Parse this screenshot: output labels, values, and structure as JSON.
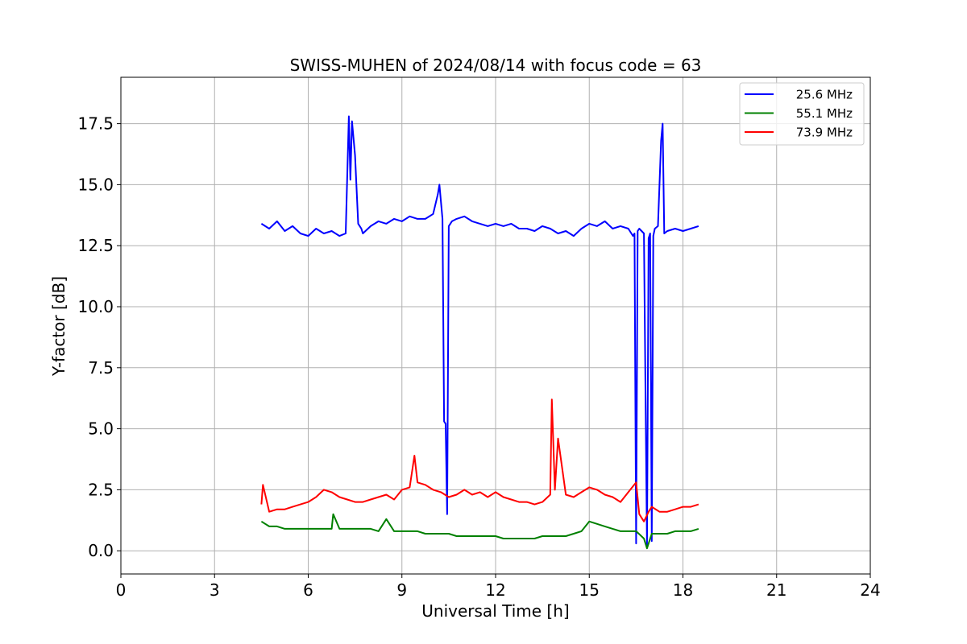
{
  "chart_data": {
    "type": "line",
    "title": "SWISS-MUHEN of 2024/08/14 with focus code = 63",
    "xlabel": "Universal Time [h]",
    "ylabel": "Y-factor [dB]",
    "xlim": [
      0,
      24
    ],
    "ylim": [
      -0.95,
      19.4
    ],
    "xticks": [
      0,
      3,
      6,
      9,
      12,
      15,
      18,
      21,
      24
    ],
    "xtick_labels": [
      "0",
      "3",
      "6",
      "9",
      "12",
      "15",
      "18",
      "21",
      "24"
    ],
    "yticks": [
      0.0,
      2.5,
      5.0,
      7.5,
      10.0,
      12.5,
      15.0,
      17.5
    ],
    "ytick_labels": [
      "0.0",
      "2.5",
      "5.0",
      "7.5",
      "10.0",
      "12.5",
      "15.0",
      "17.5"
    ],
    "grid": true,
    "legend_position": "top-right",
    "series": [
      {
        "name": "25.6 MHz",
        "color": "#0000ff",
        "x": [
          4.5,
          4.75,
          5.0,
          5.25,
          5.5,
          5.75,
          6.0,
          6.25,
          6.5,
          6.75,
          7.0,
          7.2,
          7.3,
          7.35,
          7.4,
          7.5,
          7.6,
          7.7,
          7.75,
          8.0,
          8.25,
          8.5,
          8.75,
          9.0,
          9.25,
          9.5,
          9.75,
          10.0,
          10.15,
          10.2,
          10.3,
          10.35,
          10.4,
          10.45,
          10.5,
          10.6,
          10.75,
          11.0,
          11.25,
          11.5,
          11.75,
          12.0,
          12.25,
          12.5,
          12.75,
          13.0,
          13.25,
          13.5,
          13.75,
          14.0,
          14.25,
          14.5,
          14.75,
          15.0,
          15.25,
          15.5,
          15.75,
          16.0,
          16.25,
          16.4,
          16.45,
          16.5,
          16.55,
          16.6,
          16.75,
          16.85,
          16.9,
          16.95,
          17.0,
          17.05,
          17.1,
          17.2,
          17.3,
          17.35,
          17.4,
          17.5,
          17.75,
          18.0,
          18.25,
          18.5
        ],
        "y": [
          13.4,
          13.2,
          13.5,
          13.1,
          13.3,
          13.0,
          12.9,
          13.2,
          13.0,
          13.1,
          12.9,
          13.0,
          17.8,
          15.2,
          17.6,
          16.2,
          13.4,
          13.2,
          13.0,
          13.3,
          13.5,
          13.4,
          13.6,
          13.5,
          13.7,
          13.6,
          13.6,
          13.8,
          14.6,
          15.0,
          13.6,
          5.3,
          5.2,
          1.5,
          13.3,
          13.5,
          13.6,
          13.7,
          13.5,
          13.4,
          13.3,
          13.4,
          13.3,
          13.4,
          13.2,
          13.2,
          13.1,
          13.3,
          13.2,
          13.0,
          13.1,
          12.9,
          13.2,
          13.4,
          13.3,
          13.5,
          13.2,
          13.3,
          13.2,
          12.9,
          13.0,
          0.3,
          13.1,
          13.2,
          13.0,
          0.2,
          12.8,
          13.0,
          0.4,
          12.9,
          13.2,
          13.3,
          16.8,
          17.5,
          13.0,
          13.1,
          13.2,
          13.1,
          13.2,
          13.3
        ]
      },
      {
        "name": "55.1 MHz",
        "color": "#008000",
        "x": [
          4.5,
          4.75,
          5.0,
          5.25,
          5.5,
          5.75,
          6.0,
          6.25,
          6.5,
          6.75,
          6.8,
          7.0,
          7.25,
          7.5,
          7.75,
          8.0,
          8.25,
          8.5,
          8.75,
          9.0,
          9.25,
          9.5,
          9.75,
          10.0,
          10.25,
          10.5,
          10.75,
          11.0,
          11.25,
          11.5,
          11.75,
          12.0,
          12.25,
          12.5,
          12.75,
          13.0,
          13.25,
          13.5,
          13.75,
          14.0,
          14.25,
          14.5,
          14.75,
          15.0,
          15.25,
          15.5,
          15.75,
          16.0,
          16.25,
          16.5,
          16.75,
          16.85,
          17.0,
          17.25,
          17.5,
          17.75,
          18.0,
          18.25,
          18.5
        ],
        "y": [
          1.2,
          1.0,
          1.0,
          0.9,
          0.9,
          0.9,
          0.9,
          0.9,
          0.9,
          0.9,
          1.5,
          0.9,
          0.9,
          0.9,
          0.9,
          0.9,
          0.8,
          1.3,
          0.8,
          0.8,
          0.8,
          0.8,
          0.7,
          0.7,
          0.7,
          0.7,
          0.6,
          0.6,
          0.6,
          0.6,
          0.6,
          0.6,
          0.5,
          0.5,
          0.5,
          0.5,
          0.5,
          0.6,
          0.6,
          0.6,
          0.6,
          0.7,
          0.8,
          1.2,
          1.1,
          1.0,
          0.9,
          0.8,
          0.8,
          0.8,
          0.5,
          0.1,
          0.7,
          0.7,
          0.7,
          0.8,
          0.8,
          0.8,
          0.9
        ]
      },
      {
        "name": "73.9 MHz",
        "color": "#ff0000",
        "x": [
          4.5,
          4.55,
          4.75,
          5.0,
          5.25,
          5.5,
          5.75,
          6.0,
          6.25,
          6.5,
          6.75,
          7.0,
          7.25,
          7.5,
          7.75,
          8.0,
          8.25,
          8.5,
          8.75,
          9.0,
          9.25,
          9.4,
          9.5,
          9.75,
          10.0,
          10.25,
          10.5,
          10.75,
          11.0,
          11.25,
          11.5,
          11.75,
          12.0,
          12.25,
          12.5,
          12.75,
          13.0,
          13.25,
          13.5,
          13.75,
          13.8,
          13.9,
          14.0,
          14.25,
          14.5,
          14.75,
          15.0,
          15.25,
          15.5,
          15.75,
          16.0,
          16.25,
          16.5,
          16.6,
          16.75,
          16.9,
          17.0,
          17.25,
          17.5,
          17.75,
          18.0,
          18.25,
          18.5
        ],
        "y": [
          1.9,
          2.7,
          1.6,
          1.7,
          1.7,
          1.8,
          1.9,
          2.0,
          2.2,
          2.5,
          2.4,
          2.2,
          2.1,
          2.0,
          2.0,
          2.1,
          2.2,
          2.3,
          2.1,
          2.5,
          2.6,
          3.9,
          2.8,
          2.7,
          2.5,
          2.4,
          2.2,
          2.3,
          2.5,
          2.3,
          2.4,
          2.2,
          2.4,
          2.2,
          2.1,
          2.0,
          2.0,
          1.9,
          2.0,
          2.3,
          6.2,
          2.5,
          4.6,
          2.3,
          2.2,
          2.4,
          2.6,
          2.5,
          2.3,
          2.2,
          2.0,
          2.4,
          2.8,
          1.5,
          1.2,
          1.6,
          1.8,
          1.6,
          1.6,
          1.7,
          1.8,
          1.8,
          1.9
        ]
      }
    ]
  }
}
